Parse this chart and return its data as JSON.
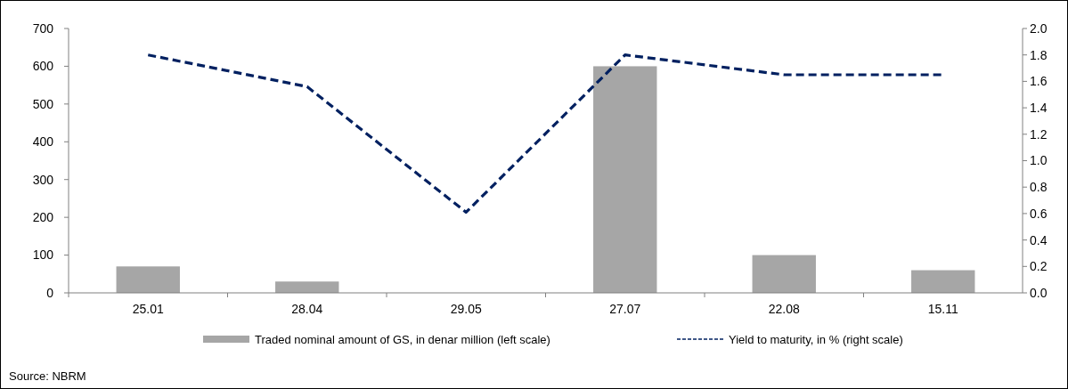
{
  "chart_data": {
    "type": "bar",
    "categories": [
      "25.01",
      "28.04",
      "29.05",
      "27.07",
      "22.08",
      "15.11"
    ],
    "series": [
      {
        "name": "Traded nominal amount of GS, in denar million (left scale)",
        "color": "#a6a6a6",
        "values": [
          70,
          30,
          0,
          600,
          100,
          60
        ]
      },
      {
        "name": "Yield to maturity, in % (right scale)",
        "type": "line",
        "axis": "y2",
        "color": "#002060",
        "line_style": "dashed",
        "values": [
          1.8,
          1.56,
          0.61,
          1.8,
          1.65,
          1.65
        ]
      }
    ],
    "ylim": [
      0,
      700
    ],
    "yticks": [
      0,
      100,
      200,
      300,
      400,
      500,
      600,
      700
    ],
    "y2lim": [
      0,
      2
    ],
    "y2ticks": [
      {
        "value": 0,
        "label": "0.0"
      },
      {
        "value": 0.2,
        "label": "0.2"
      },
      {
        "value": 0.4,
        "label": "0.4"
      },
      {
        "value": 0.6,
        "label": "0.6"
      },
      {
        "value": 0.8,
        "label": "0.8"
      },
      {
        "value": 1,
        "label": "1.0"
      },
      {
        "value": 1.2,
        "label": "1.2"
      },
      {
        "value": 1.4,
        "label": "1.4"
      },
      {
        "value": 1.6,
        "label": "1.6"
      },
      {
        "value": 1.8,
        "label": "1.8"
      },
      {
        "value": 2,
        "label": "2.0"
      }
    ],
    "grid": false,
    "legend": "bottom",
    "annotations": [
      "Source: NBRM"
    ]
  }
}
